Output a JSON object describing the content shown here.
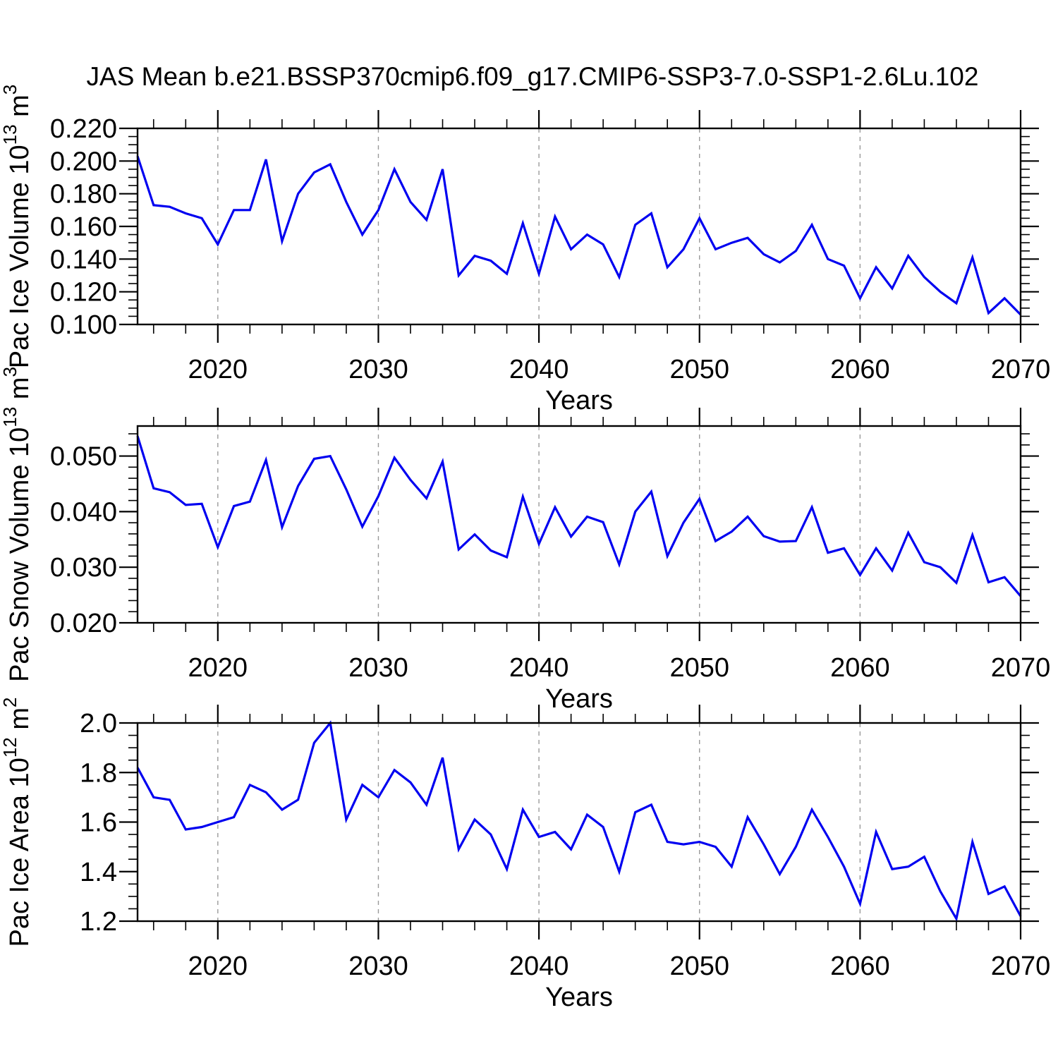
{
  "figure": {
    "title": "JAS Mean b.e21.BSSP370cmip6.f09_g17.CMIP6-SSP3-7.0-SSP1-2.6Lu.102",
    "background": "#ffffff",
    "line_color": "#0000f0",
    "grid_color": "#9a9a9a",
    "frame_color": "#000000",
    "text_color": "#000000"
  },
  "chart_data": [
    {
      "id": "pac-ice-volume",
      "type": "line",
      "ylabel": "Pac Ice Volume 10^13 m^3",
      "ylabel_parts": [
        {
          "t": "Pac Ice Volume 10"
        },
        {
          "t": "13",
          "sup": true
        },
        {
          "t": " m"
        },
        {
          "t": "3",
          "sup": true
        }
      ],
      "xlabel": "Years",
      "legend": "none",
      "grid": "vertical-dashed",
      "xlim": [
        2015,
        2070
      ],
      "xticks": [
        2020,
        2030,
        2040,
        2050,
        2060,
        2070
      ],
      "xtick_minor_step": 2,
      "ylim": [
        0.1,
        0.22
      ],
      "ytick_minor_step": 0.005,
      "yticks": [
        {
          "v": 0.1,
          "label": "0.100"
        },
        {
          "v": 0.12,
          "label": "0.120"
        },
        {
          "v": 0.14,
          "label": "0.140"
        },
        {
          "v": 0.16,
          "label": "0.160"
        },
        {
          "v": 0.18,
          "label": "0.180"
        },
        {
          "v": 0.2,
          "label": "0.200"
        },
        {
          "v": 0.22,
          "label": "0.220"
        }
      ],
      "x": [
        2015,
        2016,
        2017,
        2018,
        2019,
        2020,
        2021,
        2022,
        2023,
        2024,
        2025,
        2026,
        2027,
        2028,
        2029,
        2030,
        2031,
        2032,
        2033,
        2034,
        2035,
        2036,
        2037,
        2038,
        2039,
        2040,
        2041,
        2042,
        2043,
        2044,
        2045,
        2046,
        2047,
        2048,
        2049,
        2050,
        2051,
        2052,
        2053,
        2054,
        2055,
        2056,
        2057,
        2058,
        2059,
        2060,
        2061,
        2062,
        2063,
        2064,
        2065,
        2066,
        2067,
        2068,
        2069,
        2070
      ],
      "values": [
        0.203,
        0.173,
        0.172,
        0.168,
        0.165,
        0.149,
        0.17,
        0.17,
        0.201,
        0.151,
        0.18,
        0.193,
        0.198,
        0.175,
        0.155,
        0.17,
        0.195,
        0.175,
        0.164,
        0.195,
        0.13,
        0.142,
        0.139,
        0.131,
        0.162,
        0.131,
        0.166,
        0.146,
        0.155,
        0.149,
        0.129,
        0.161,
        0.168,
        0.135,
        0.146,
        0.165,
        0.146,
        0.15,
        0.153,
        0.143,
        0.138,
        0.145,
        0.161,
        0.14,
        0.136,
        0.116,
        0.135,
        0.122,
        0.142,
        0.129,
        0.12,
        0.113,
        0.141,
        0.107,
        0.116,
        0.106
      ]
    },
    {
      "id": "pac-snow-volume",
      "type": "line",
      "ylabel": "Pac Snow Volume 10^13 m^3",
      "ylabel_parts": [
        {
          "t": "Pac Snow Volume 10"
        },
        {
          "t": "13",
          "sup": true
        },
        {
          "t": " m"
        },
        {
          "t": "3",
          "sup": true
        }
      ],
      "xlabel": "Years",
      "legend": "none",
      "grid": "vertical-dashed",
      "xlim": [
        2015,
        2070
      ],
      "xticks": [
        2020,
        2030,
        2040,
        2050,
        2060,
        2070
      ],
      "xtick_minor_step": 2,
      "ylim": [
        0.02,
        0.0554
      ],
      "ytick_minor_step": 0.002,
      "yticks": [
        {
          "v": 0.02,
          "label": "0.020"
        },
        {
          "v": 0.03,
          "label": "0.030"
        },
        {
          "v": 0.04,
          "label": "0.040"
        },
        {
          "v": 0.05,
          "label": "0.050"
        }
      ],
      "x": [
        2015,
        2016,
        2017,
        2018,
        2019,
        2020,
        2021,
        2022,
        2023,
        2024,
        2025,
        2026,
        2027,
        2028,
        2029,
        2030,
        2031,
        2032,
        2033,
        2034,
        2035,
        2036,
        2037,
        2038,
        2039,
        2040,
        2041,
        2042,
        2043,
        2044,
        2045,
        2046,
        2047,
        2048,
        2049,
        2050,
        2051,
        2052,
        2053,
        2054,
        2055,
        2056,
        2057,
        2058,
        2059,
        2060,
        2061,
        2062,
        2063,
        2064,
        2065,
        2066,
        2067,
        2068,
        2069,
        2070
      ],
      "values": [
        0.0536,
        0.0442,
        0.0435,
        0.0412,
        0.0414,
        0.0336,
        0.041,
        0.0418,
        0.0493,
        0.0372,
        0.0446,
        0.0495,
        0.05,
        0.044,
        0.0373,
        0.0428,
        0.0497,
        0.0457,
        0.0424,
        0.049,
        0.0332,
        0.0359,
        0.033,
        0.0318,
        0.0427,
        0.0342,
        0.0408,
        0.0355,
        0.0391,
        0.0381,
        0.0305,
        0.04,
        0.0436,
        0.032,
        0.038,
        0.0423,
        0.0347,
        0.0364,
        0.0391,
        0.0356,
        0.0346,
        0.0347,
        0.0408,
        0.0326,
        0.0334,
        0.0286,
        0.0334,
        0.0294,
        0.0362,
        0.0309,
        0.03,
        0.0272,
        0.0358,
        0.0273,
        0.0282,
        0.0248
      ]
    },
    {
      "id": "pac-ice-area",
      "type": "line",
      "ylabel": "Pac Ice Area 10^12 m^2",
      "ylabel_parts": [
        {
          "t": "Pac Ice Area 10"
        },
        {
          "t": "12",
          "sup": true
        },
        {
          "t": " m"
        },
        {
          "t": "2",
          "sup": true
        }
      ],
      "xlabel": "Years",
      "legend": "none",
      "grid": "vertical-dashed",
      "xlim": [
        2015,
        2070
      ],
      "xticks": [
        2020,
        2030,
        2040,
        2050,
        2060,
        2070
      ],
      "xtick_minor_step": 2,
      "ylim": [
        1.2,
        2.0
      ],
      "ytick_minor_step": 0.05,
      "yticks": [
        {
          "v": 1.2,
          "label": "1.2"
        },
        {
          "v": 1.4,
          "label": "1.4"
        },
        {
          "v": 1.6,
          "label": "1.6"
        },
        {
          "v": 1.8,
          "label": "1.8"
        },
        {
          "v": 2.0,
          "label": "2.0"
        }
      ],
      "x": [
        2015,
        2016,
        2017,
        2018,
        2019,
        2020,
        2021,
        2022,
        2023,
        2024,
        2025,
        2026,
        2027,
        2028,
        2029,
        2030,
        2031,
        2032,
        2033,
        2034,
        2035,
        2036,
        2037,
        2038,
        2039,
        2040,
        2041,
        2042,
        2043,
        2044,
        2045,
        2046,
        2047,
        2048,
        2049,
        2050,
        2051,
        2052,
        2053,
        2054,
        2055,
        2056,
        2057,
        2058,
        2059,
        2060,
        2061,
        2062,
        2063,
        2064,
        2065,
        2066,
        2067,
        2068,
        2069,
        2070
      ],
      "values": [
        1.82,
        1.7,
        1.69,
        1.57,
        1.58,
        1.6,
        1.62,
        1.75,
        1.72,
        1.65,
        1.69,
        1.92,
        2.0,
        1.61,
        1.75,
        1.7,
        1.81,
        1.76,
        1.67,
        1.86,
        1.49,
        1.61,
        1.55,
        1.41,
        1.65,
        1.54,
        1.56,
        1.49,
        1.63,
        1.58,
        1.4,
        1.64,
        1.67,
        1.52,
        1.51,
        1.52,
        1.5,
        1.42,
        1.62,
        1.51,
        1.39,
        1.5,
        1.65,
        1.54,
        1.42,
        1.27,
        1.56,
        1.41,
        1.42,
        1.46,
        1.32,
        1.21,
        1.52,
        1.31,
        1.34,
        1.22
      ]
    }
  ]
}
